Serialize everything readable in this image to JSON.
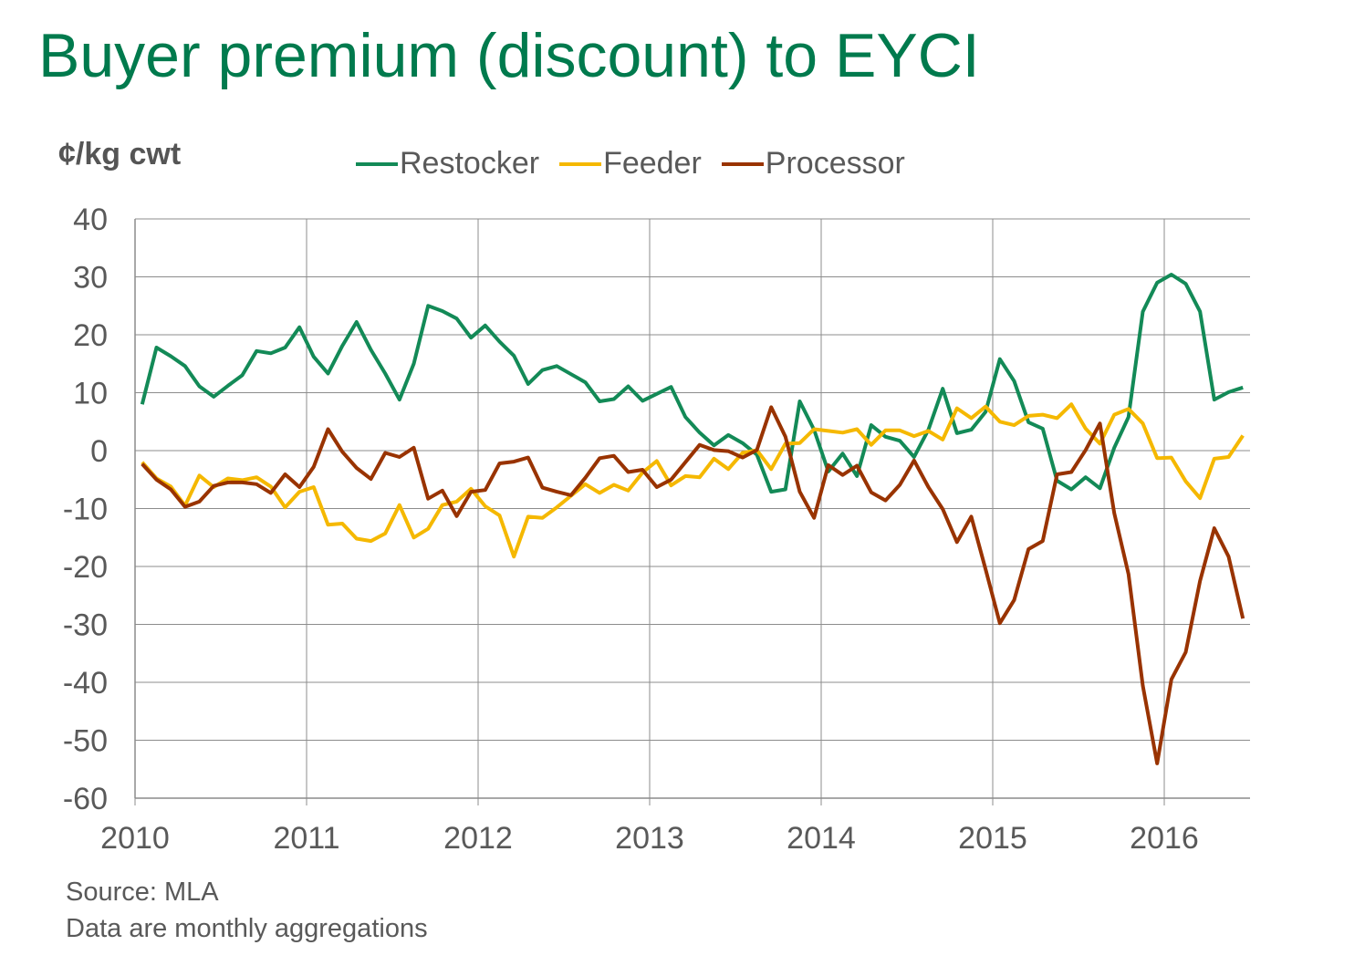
{
  "title": "Buyer premium (discount) to EYCI",
  "source": "Source: MLA",
  "note": "Data are monthly aggregations",
  "chart_data": {
    "type": "line",
    "ylabel": "¢/kg cwt",
    "ylim": [
      -60,
      40
    ],
    "yticks": [
      40,
      30,
      20,
      10,
      0,
      -10,
      -20,
      -30,
      -40,
      -50,
      -60
    ],
    "xlim": [
      2010,
      2016.5
    ],
    "xticks": [
      "2010",
      "2011",
      "2012",
      "2013",
      "2014",
      "2015",
      "2016"
    ],
    "grid": true,
    "legend_position": "top",
    "x_start": "2010-01",
    "x_step": "monthly",
    "series": [
      {
        "name": "Restocker",
        "color": "#138a57",
        "values": [
          8,
          17.8,
          16.3,
          14.6,
          11.1,
          9.3,
          11.2,
          13,
          17.2,
          16.8,
          17.8,
          21.3,
          16.2,
          13.3,
          18.1,
          22.2,
          17.4,
          13.3,
          8.8,
          15,
          25,
          24.1,
          22.8,
          19.5,
          21.6,
          18.8,
          16.4,
          11.5,
          13.9,
          14.6,
          13.2,
          11.8,
          8.5,
          8.9,
          11.1,
          8.6,
          9.8,
          11,
          5.8,
          3.1,
          0.9,
          2.7,
          1.3,
          -0.7,
          -7.1,
          -6.7,
          8.5,
          3.6,
          -3.6,
          -0.5,
          -4.4,
          4.4,
          2.4,
          1.7,
          -1.1,
          3.6,
          10.7,
          3,
          3.6,
          6.7,
          15.8,
          12,
          4.9,
          3.8,
          -5.2,
          -6.7,
          -4.6,
          -6.5,
          0.5,
          5.8,
          24,
          29,
          30.4,
          28.8,
          24,
          8.8,
          10.1,
          10.9
        ]
      },
      {
        "name": "Feeder",
        "color": "#f5b800",
        "values": [
          -2,
          -4.8,
          -6.2,
          -9.5,
          -4.3,
          -6.3,
          -4.8,
          -5.1,
          -4.6,
          -6.2,
          -9.8,
          -7.1,
          -6.3,
          -12.8,
          -12.6,
          -15.2,
          -15.6,
          -14.3,
          -9.4,
          -15,
          -13.5,
          -9.4,
          -8.8,
          -6.6,
          -9.6,
          -11.2,
          -18.3,
          -11.4,
          -11.6,
          -9.8,
          -7.8,
          -5.8,
          -7.3,
          -5.9,
          -6.9,
          -3.8,
          -1.8,
          -6,
          -4.4,
          -4.6,
          -1.4,
          -3.2,
          -0.4,
          0.1,
          -3.2,
          1.2,
          1.3,
          3.7,
          3.4,
          3.1,
          3.7,
          1,
          3.5,
          3.5,
          2.5,
          3.4,
          1.9,
          7.3,
          5.6,
          7.6,
          5,
          4.4,
          6,
          6.2,
          5.6,
          8,
          3.8,
          1.2,
          6.2,
          7.2,
          4.7,
          -1.3,
          -1.2,
          -5.3,
          -8.2,
          -1.4,
          -1.1,
          2.6
        ]
      },
      {
        "name": "Processor",
        "color": "#993300",
        "values": [
          -2.3,
          -5,
          -6.7,
          -9.7,
          -8.8,
          -6.1,
          -5.5,
          -5.5,
          -5.8,
          -7.3,
          -4.1,
          -6.3,
          -2.8,
          3.7,
          -0.2,
          -3,
          -4.9,
          -0.4,
          -1.1,
          0.5,
          -8.3,
          -6.9,
          -11.3,
          -7.1,
          -6.8,
          -2.2,
          -1.9,
          -1.2,
          -6.4,
          -7.1,
          -7.7,
          -4.7,
          -1.3,
          -0.9,
          -3.7,
          -3.3,
          -6.3,
          -5,
          -2,
          1,
          0.1,
          -0.1,
          -1.2,
          0.1,
          7.5,
          2.4,
          -7.1,
          -11.6,
          -2.5,
          -4.2,
          -2.6,
          -7.2,
          -8.6,
          -5.9,
          -1.7,
          -6.3,
          -10.1,
          -15.8,
          -11.4,
          -20.5,
          -29.8,
          -25.8,
          -17,
          -15.6,
          -4.1,
          -3.7,
          0.1,
          4.7,
          -10.8,
          -21.3,
          -40.6,
          -54,
          -39.5,
          -34.8,
          -22.5,
          -13.4,
          -18.3,
          -29
        ]
      }
    ]
  }
}
